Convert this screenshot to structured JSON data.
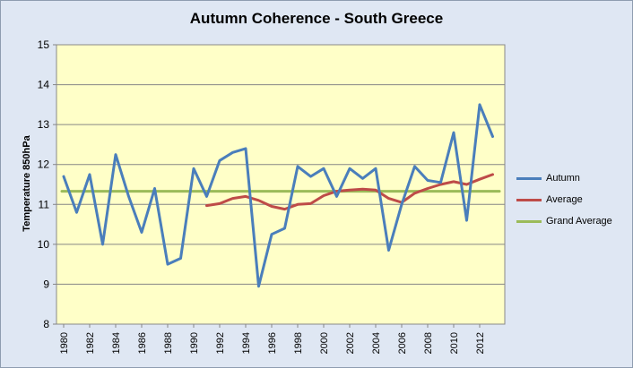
{
  "chart_data": {
    "type": "line",
    "title": "Autumn Coherence - South Greece",
    "xlabel": "",
    "ylabel": "Temperature 850hPa",
    "ylim": [
      8,
      15
    ],
    "yticks": [
      "8",
      "9",
      "10",
      "11",
      "12",
      "13",
      "14",
      "15"
    ],
    "xlim": [
      1980,
      2013
    ],
    "xticks": [
      "1980",
      "1982",
      "1984",
      "1986",
      "1988",
      "1990",
      "1992",
      "1994",
      "1996",
      "1998",
      "2000",
      "2002",
      "2004",
      "2006",
      "2008",
      "2010",
      "2012"
    ],
    "grid": true,
    "legend_position": "right",
    "plot_background": "#ffffc8",
    "series": [
      {
        "name": "Autumn",
        "color": "#4a7ebb",
        "x": [
          1980,
          1981,
          1982,
          1983,
          1984,
          1985,
          1986,
          1987,
          1988,
          1989,
          1990,
          1991,
          1992,
          1993,
          1994,
          1995,
          1996,
          1997,
          1998,
          1999,
          2000,
          2001,
          2002,
          2003,
          2004,
          2005,
          2006,
          2007,
          2008,
          2009,
          2010,
          2011,
          2012,
          2013
        ],
        "values": [
          11.7,
          10.8,
          11.75,
          10.0,
          12.25,
          11.2,
          10.3,
          11.4,
          9.5,
          9.65,
          11.9,
          11.2,
          12.1,
          12.3,
          12.4,
          8.95,
          10.25,
          10.4,
          11.95,
          11.7,
          11.9,
          11.2,
          11.9,
          11.65,
          11.9,
          9.85,
          11.0,
          11.95,
          11.6,
          11.55,
          12.8,
          10.6,
          13.5,
          12.7
        ]
      },
      {
        "name": "Average",
        "color": "#be4b48",
        "x": [
          1991,
          1992,
          1993,
          1994,
          1995,
          1996,
          1997,
          1998,
          1999,
          2000,
          2001,
          2002,
          2003,
          2004,
          2005,
          2006,
          2007,
          2008,
          2009,
          2010,
          2011,
          2012,
          2013
        ],
        "values": [
          10.97,
          11.02,
          11.15,
          11.2,
          11.1,
          10.95,
          10.88,
          11.0,
          11.02,
          11.22,
          11.33,
          11.36,
          11.38,
          11.36,
          11.15,
          11.05,
          11.28,
          11.4,
          11.5,
          11.57,
          11.5,
          11.63,
          11.75
        ]
      },
      {
        "name": "Grand Average",
        "color": "#9bbb59",
        "x": [
          1980,
          2013
        ],
        "values": [
          11.33,
          11.33
        ]
      }
    ]
  }
}
